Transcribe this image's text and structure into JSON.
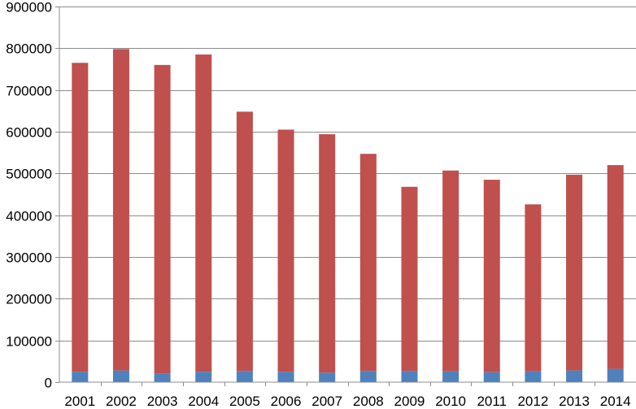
{
  "chart_data": {
    "type": "bar",
    "stacked": true,
    "title": "",
    "xlabel": "",
    "ylabel": "",
    "ylim": [
      0,
      900000
    ],
    "yticks": [
      0,
      100000,
      200000,
      300000,
      400000,
      500000,
      600000,
      700000,
      800000,
      900000
    ],
    "grid": true,
    "legend": "none",
    "categories": [
      "2001",
      "2002",
      "2003",
      "2004",
      "2005",
      "2006",
      "2007",
      "2008",
      "2009",
      "2010",
      "2011",
      "2012",
      "2013",
      "2014"
    ],
    "series": [
      {
        "color": "#4f81bd",
        "values": [
          25000,
          28000,
          20000,
          25000,
          27000,
          25000,
          23000,
          27000,
          27000,
          26000,
          24000,
          26000,
          28000,
          32000
        ]
      },
      {
        "color": "#c0504d",
        "values": [
          740000,
          770000,
          740000,
          760000,
          621000,
          580000,
          571000,
          520000,
          441000,
          481000,
          461000,
          400000,
          469000,
          488000
        ]
      }
    ]
  }
}
